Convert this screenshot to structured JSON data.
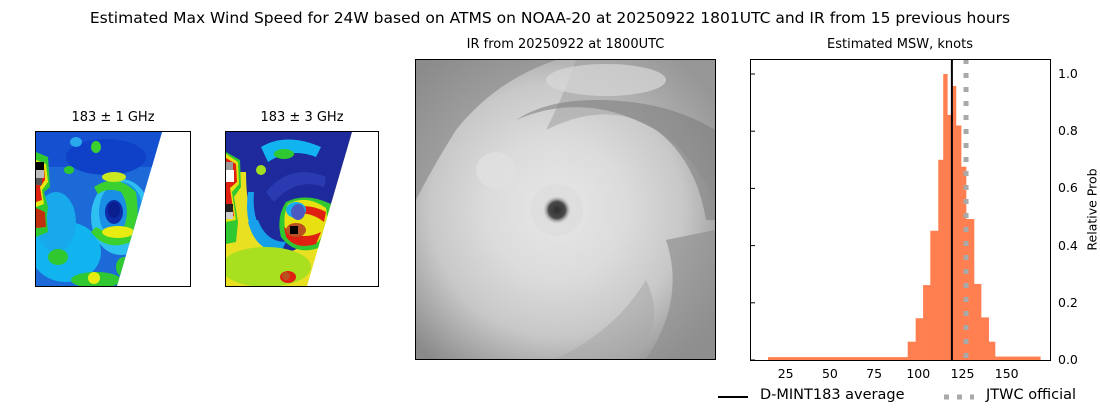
{
  "figure": {
    "suptitle": "Estimated Max Wind Speed for 24W based on ATMS on NOAA-20 at 20250922 1801UTC and IR from 15 previous hours"
  },
  "panels": {
    "mw1": {
      "title": "183 ± 1 GHz"
    },
    "mw2": {
      "title": "183 ± 3 GHz"
    },
    "ir": {
      "title": "IR from 20250922 at 1800UTC"
    }
  },
  "legend": {
    "average_label": "D-MINT183 average",
    "official_label": "JTWC official"
  },
  "colors": {
    "bar": "#ff7f50",
    "average_line": "#000000",
    "official_line": "#a9a9a9"
  },
  "chart_data": {
    "type": "bar",
    "title": "Estimated MSW, knots",
    "xlabel": "",
    "ylabel": "Relative Prob",
    "xlim": [
      0,
      173
    ],
    "ylim": [
      0.0,
      1.05
    ],
    "xticks": [
      25,
      50,
      75,
      100,
      125,
      150
    ],
    "yticks": [
      0.0,
      0.2,
      0.4,
      0.6,
      0.8,
      1.0
    ],
    "ytick_labels": [
      "0.0",
      "0.2",
      "0.4",
      "0.6",
      "0.8",
      "1.0"
    ],
    "y_axis_side": "right",
    "grid": false,
    "bins": [
      {
        "x0": 15.0,
        "x1": 94.0,
        "value": 0.01
      },
      {
        "x0": 94.0,
        "x1": 98.5,
        "value": 0.064
      },
      {
        "x0": 98.5,
        "x1": 102.7,
        "value": 0.146
      },
      {
        "x0": 102.7,
        "x1": 106.8,
        "value": 0.262
      },
      {
        "x0": 106.8,
        "x1": 111.3,
        "value": 0.452
      },
      {
        "x0": 111.3,
        "x1": 114.1,
        "value": 0.7
      },
      {
        "x0": 114.1,
        "x1": 116.4,
        "value": 1.0
      },
      {
        "x0": 116.4,
        "x1": 119.5,
        "value": 0.857
      },
      {
        "x0": 119.5,
        "x1": 121.3,
        "value": 0.958
      },
      {
        "x0": 121.3,
        "x1": 124.2,
        "value": 0.82
      },
      {
        "x0": 124.2,
        "x1": 127.0,
        "value": 0.676
      },
      {
        "x0": 127.0,
        "x1": 131.5,
        "value": 0.493
      },
      {
        "x0": 131.5,
        "x1": 135.5,
        "value": 0.266
      },
      {
        "x0": 135.5,
        "x1": 139.8,
        "value": 0.149
      },
      {
        "x0": 139.8,
        "x1": 143.4,
        "value": 0.064
      },
      {
        "x0": 143.4,
        "x1": 169.0,
        "value": 0.012
      }
    ],
    "series": [
      {
        "name": "D-MINT183 average",
        "type": "vline",
        "x": 119,
        "style": "solid"
      },
      {
        "name": "JTWC official",
        "type": "vline",
        "x": 127,
        "style": "dotted"
      }
    ],
    "legend_position": "below-right"
  }
}
